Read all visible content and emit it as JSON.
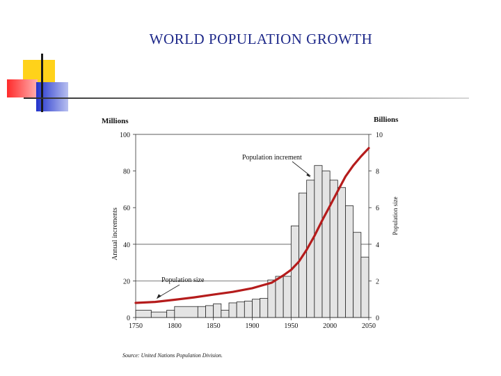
{
  "slide": {
    "title": "WORLD POPULATION GROWTH",
    "source": "Source: United Nations Population Division."
  },
  "colors": {
    "title": "#1f2a8a",
    "bar_fill": "#e4e4e4",
    "bar_stroke": "#222222",
    "size_line": "#b51c1c",
    "deco_yellow": "#ffd21a",
    "deco_red": "#ff2a2a",
    "deco_blue": "#2233cc"
  },
  "chart_data": {
    "type": "bar",
    "title": "",
    "left_axis_unit": "Millions",
    "right_axis_unit": "Billions",
    "ylabel": "Annual increments",
    "ylabel_right": "Population size",
    "xlim": [
      1750,
      2050
    ],
    "ylim": [
      0,
      100
    ],
    "ylim_right": [
      0,
      10
    ],
    "x_ticks": [
      1750,
      1800,
      1850,
      1900,
      1950,
      2000,
      2050
    ],
    "y_ticks": [
      0,
      20,
      40,
      60,
      80,
      100
    ],
    "y_ticks_right": [
      0,
      2,
      4,
      6,
      8,
      10
    ],
    "grid": "horizontal at 20 and 40",
    "bars": {
      "name": "Population increment",
      "start": [
        1750,
        1770,
        1790,
        1800,
        1830,
        1840,
        1850,
        1860,
        1870,
        1880,
        1890,
        1900,
        1910,
        1920,
        1930,
        1940,
        1950,
        1960,
        1970,
        1980,
        1990,
        2000,
        2010,
        2020,
        2030,
        2040
      ],
      "end": [
        1770,
        1790,
        1800,
        1830,
        1840,
        1850,
        1860,
        1870,
        1880,
        1890,
        1900,
        1910,
        1920,
        1930,
        1940,
        1950,
        1960,
        1970,
        1980,
        1990,
        2000,
        2010,
        2020,
        2030,
        2040,
        2050
      ],
      "values": [
        4,
        3,
        4,
        6,
        6,
        6.5,
        7.5,
        4,
        8,
        8.5,
        9,
        10,
        10.5,
        20.5,
        22.5,
        22.5,
        50,
        68,
        75,
        83,
        80,
        75,
        71,
        61,
        46.5,
        33
      ]
    },
    "line": {
      "name": "Population size",
      "x": [
        1750,
        1775,
        1800,
        1825,
        1850,
        1875,
        1900,
        1925,
        1940,
        1950,
        1960,
        1970,
        1980,
        1990,
        2000,
        2010,
        2020,
        2030,
        2040,
        2050
      ],
      "y": [
        0.8,
        0.85,
        0.97,
        1.1,
        1.25,
        1.4,
        1.6,
        1.9,
        2.3,
        2.6,
        3.05,
        3.7,
        4.45,
        5.3,
        6.1,
        6.9,
        7.7,
        8.3,
        8.8,
        9.25
      ]
    },
    "annotations": [
      {
        "text": "Population increment",
        "points_to": "bars",
        "at_x": 1975,
        "at_y": 75
      },
      {
        "text": "Population size",
        "points_to": "line",
        "at_x": 1775,
        "at_y": 0.86
      }
    ]
  }
}
